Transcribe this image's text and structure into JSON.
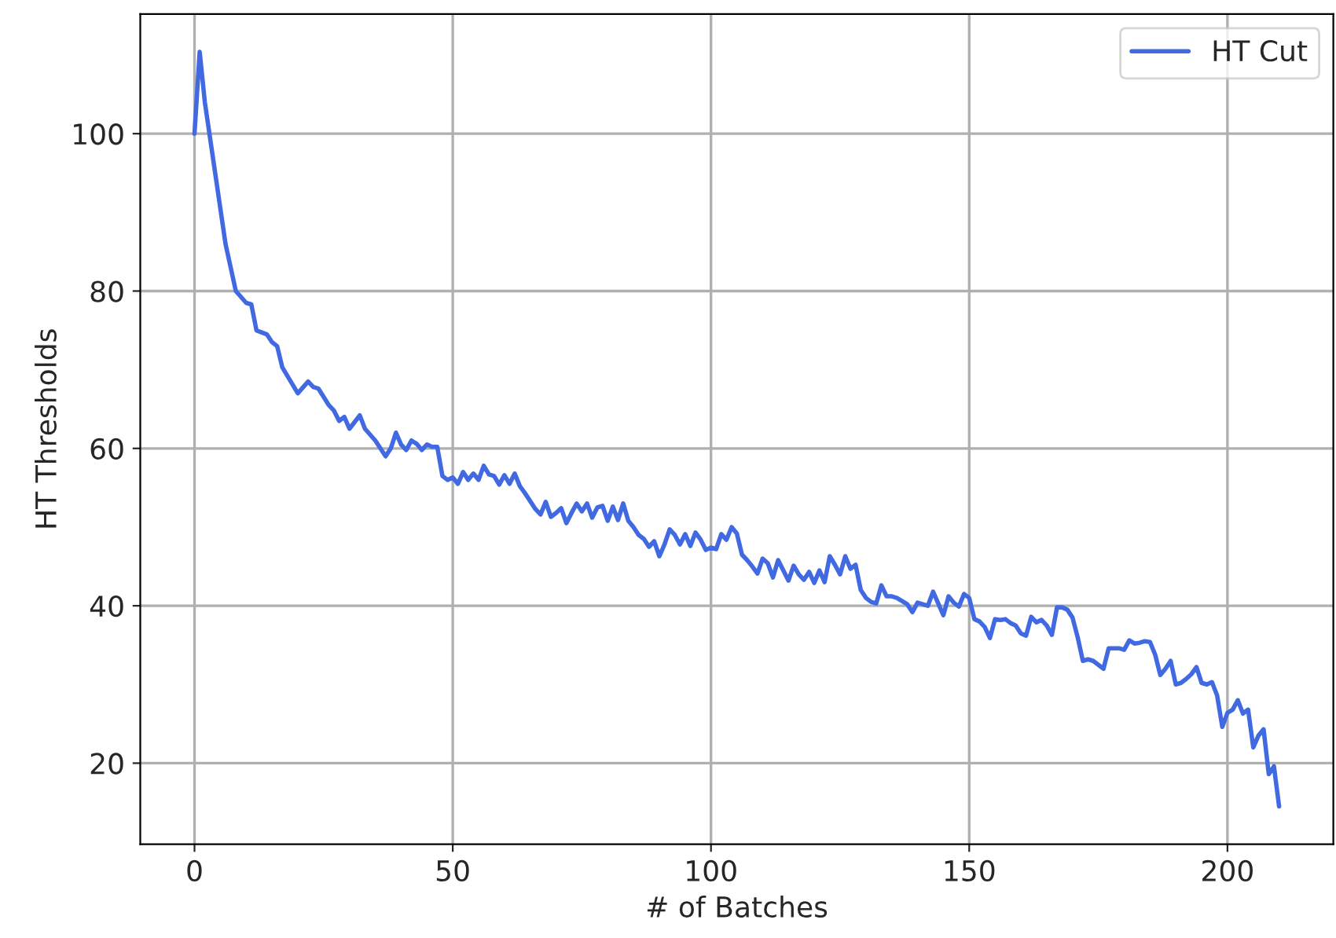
{
  "chart_data": {
    "type": "line",
    "xlabel": "# of Batches",
    "ylabel": "HT Thresholds",
    "xlim": [
      -10.5,
      220.5
    ],
    "ylim": [
      9.7,
      115.2
    ],
    "xticks": [
      0,
      50,
      100,
      150,
      200
    ],
    "yticks": [
      20,
      40,
      60,
      80,
      100
    ],
    "grid": true,
    "legend": "top right",
    "x": [
      0,
      1,
      2,
      4,
      6,
      8,
      10,
      11,
      12,
      14,
      15,
      16,
      17,
      20,
      22,
      23,
      24,
      26,
      27,
      28,
      29,
      30,
      32,
      33,
      35,
      37,
      38,
      39,
      40,
      41,
      42,
      43,
      44,
      45,
      46,
      47,
      48,
      49,
      50,
      51,
      52,
      53,
      54,
      55,
      56,
      57,
      58,
      59,
      60,
      61,
      62,
      63,
      64,
      66,
      67,
      68,
      69,
      70,
      71,
      72,
      73,
      74,
      75,
      76,
      77,
      78,
      79,
      80,
      81,
      82,
      83,
      84,
      85,
      86,
      87,
      88,
      89,
      90,
      91,
      92,
      93,
      94,
      95,
      96,
      97,
      98,
      99,
      100,
      101,
      102,
      103,
      104,
      105,
      106,
      107,
      108,
      109,
      110,
      111,
      112,
      113,
      114,
      115,
      116,
      117,
      118,
      119,
      120,
      121,
      122,
      123,
      124,
      125,
      126,
      127,
      128,
      129,
      130,
      131,
      132,
      133,
      134,
      135,
      136,
      137,
      138,
      139,
      140,
      141,
      142,
      143,
      144,
      145,
      146,
      147,
      148,
      149,
      150,
      151,
      152,
      153,
      154,
      155,
      156,
      157,
      158,
      159,
      160,
      161,
      162,
      163,
      164,
      165,
      166,
      167,
      168,
      169,
      170,
      171,
      172,
      173,
      174,
      175,
      176,
      177,
      178,
      179,
      180,
      181,
      182,
      183,
      184,
      185,
      186,
      187,
      188,
      189,
      190,
      191,
      192,
      193,
      194,
      195,
      196,
      197,
      198,
      199,
      200,
      201,
      202,
      203,
      204,
      205,
      206,
      207,
      208,
      209,
      210
    ],
    "series": [
      {
        "name": "HT Cut",
        "color": "#4169e1",
        "values": [
          100,
          110.4,
          104,
          95,
          86,
          80,
          78.5,
          78.3,
          75,
          74.5,
          73.5,
          73,
          70.3,
          67,
          68.5,
          67.8,
          67.6,
          65.5,
          64.8,
          63.5,
          64,
          62.5,
          64.2,
          62.5,
          61,
          59,
          60,
          62,
          60.5,
          59.8,
          61,
          60.6,
          59.8,
          60.5,
          60.2,
          60.2,
          56.5,
          56,
          56.3,
          55.5,
          57,
          56,
          56.8,
          56,
          57.8,
          56.7,
          56.5,
          55.4,
          56.6,
          55.5,
          56.8,
          55.2,
          54.3,
          52.3,
          51.6,
          53.2,
          51.3,
          51.8,
          52.4,
          50.5,
          51.8,
          53,
          52,
          53,
          51.2,
          52.5,
          52.7,
          50.8,
          52.6,
          50.9,
          53,
          50.8,
          50,
          49,
          48.5,
          47.5,
          48.2,
          46.3,
          47.8,
          49.7,
          49,
          47.8,
          49.1,
          47.6,
          49.3,
          48.4,
          47.1,
          47.4,
          47.2,
          49.1,
          48.4,
          50,
          49.2,
          46.5,
          45.8,
          45,
          44.1,
          46,
          45.4,
          43.6,
          45.8,
          44.5,
          43.2,
          45.1,
          44,
          43.3,
          44.3,
          42.9,
          44.5,
          43,
          46.3,
          45.2,
          44,
          46.3,
          44.7,
          45.2,
          42,
          41,
          40.5,
          40.3,
          42.6,
          41.2,
          41.2,
          41,
          40.6,
          40.2,
          39.2,
          40.4,
          40.2,
          40,
          41.8,
          40.3,
          38.8,
          41.2,
          40.4,
          39.9,
          41.5,
          41,
          38.3,
          38,
          37.3,
          35.9,
          38.3,
          38.2,
          38.3,
          37.8,
          37.5,
          36.5,
          36.2,
          38.6,
          37.9,
          38.2,
          37.5,
          36.3,
          39.8,
          39.8,
          39.5,
          38.5,
          36,
          33,
          33.2,
          33,
          32.5,
          32,
          34.6,
          34.6,
          34.6,
          34.4,
          35.6,
          35.2,
          35.3,
          35.5,
          35.4,
          33.8,
          31.2,
          32,
          33,
          30,
          30.2,
          30.7,
          31.3,
          32.2,
          30.2,
          30,
          30.3,
          28.6,
          24.6,
          26.4,
          26.8,
          28,
          26.3,
          26.8,
          22,
          23.5,
          24.3,
          18.6,
          19.6,
          14.5
        ]
      }
    ]
  }
}
